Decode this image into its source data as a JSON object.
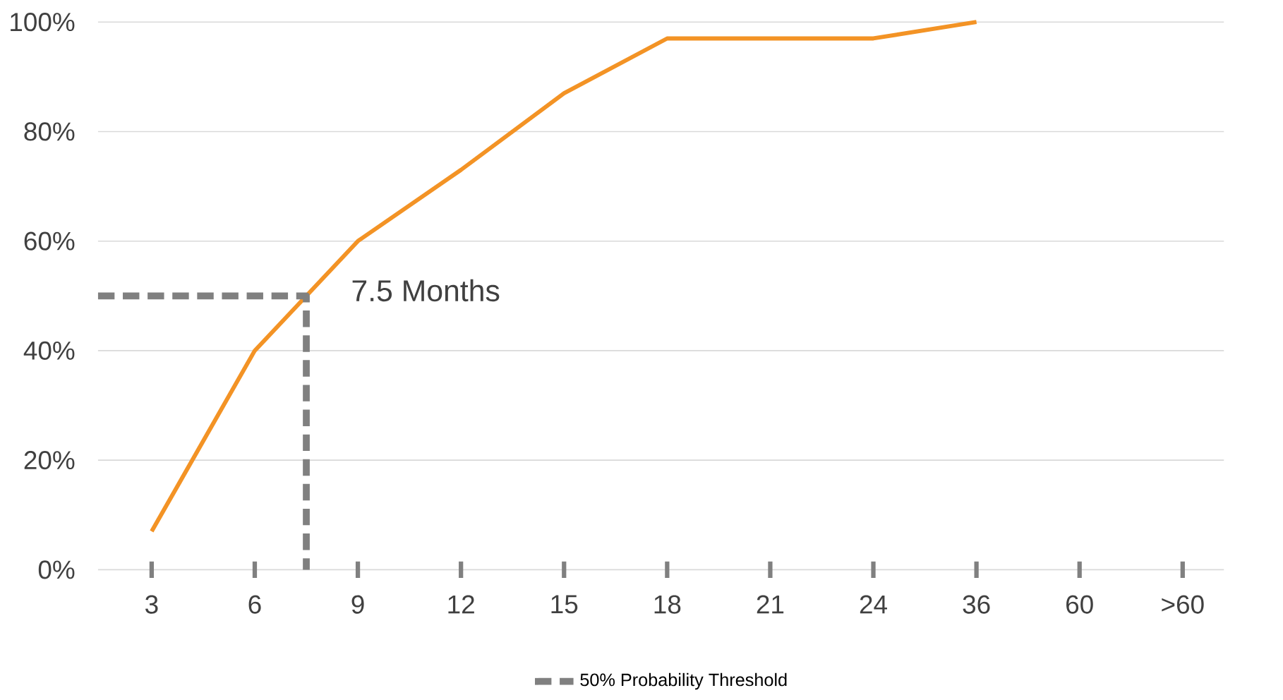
{
  "chart_data": {
    "type": "line",
    "categories": [
      "3",
      "6",
      "9",
      "12",
      "15",
      "18",
      "21",
      "24",
      "36",
      "60",
      ">60"
    ],
    "series": [
      {
        "color": "#f39325",
        "values": [
          7,
          40,
          60,
          73,
          87,
          97,
          97,
          97,
          100,
          null,
          null
        ]
      }
    ],
    "ref_lines": [
      {
        "axis": "y",
        "value": 50,
        "label": "50% Probability Threshold",
        "color": "#808080",
        "line_style": "dashed"
      }
    ],
    "annotations": [
      "7.5 Months"
    ],
    "ylim": [
      0,
      100
    ],
    "yticks": [
      {
        "value": 0,
        "label": "0%"
      },
      {
        "value": 20,
        "label": "20%"
      },
      {
        "value": 40,
        "label": "40%"
      },
      {
        "value": 60,
        "label": "60%"
      },
      {
        "value": 80,
        "label": "80%"
      },
      {
        "value": 100,
        "label": "100%"
      }
    ],
    "grid": "y",
    "legend": "bottom",
    "marker": "none"
  }
}
